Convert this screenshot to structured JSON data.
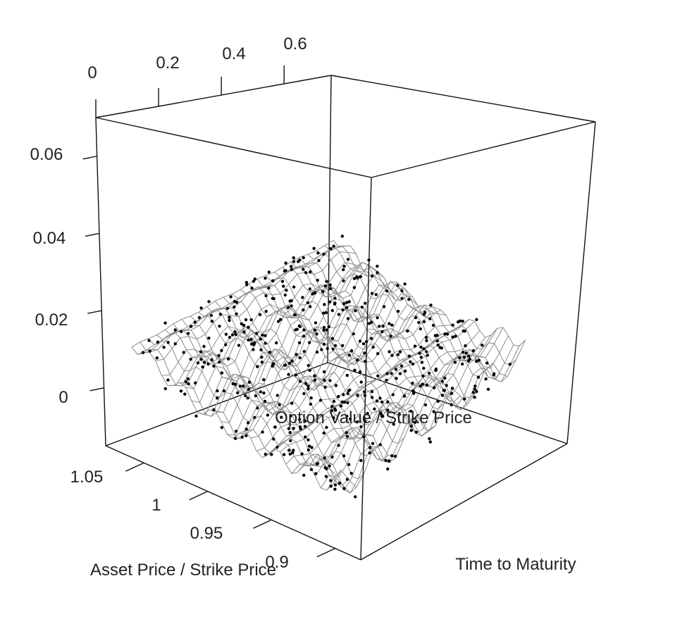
{
  "chart_data": {
    "type": "surface-3d-scatter",
    "xlabel": "Asset Price / Strike Price",
    "ylabel": "Time to Maturity",
    "zlabel": "Option Value / Strike Price",
    "x_ticks": [
      "0.9",
      "0.95",
      "1",
      "1.05"
    ],
    "y_ticks": [
      "0",
      "0.2",
      "0.4",
      "0.6"
    ],
    "z_ticks": [
      "0",
      "0.02",
      "0.04",
      "0.06"
    ],
    "xlim": [
      0.88,
      1.08
    ],
    "ylim": [
      0.0,
      0.75
    ],
    "zlim": [
      -0.015,
      0.07
    ],
    "surface": "fitted option value surface drawn as a grey wireframe mesh",
    "points": "observed option values drawn as black dots scattered around the surface",
    "colors": {
      "mesh": "#8c8c8c",
      "points": "#000000",
      "box": "#111111"
    }
  }
}
